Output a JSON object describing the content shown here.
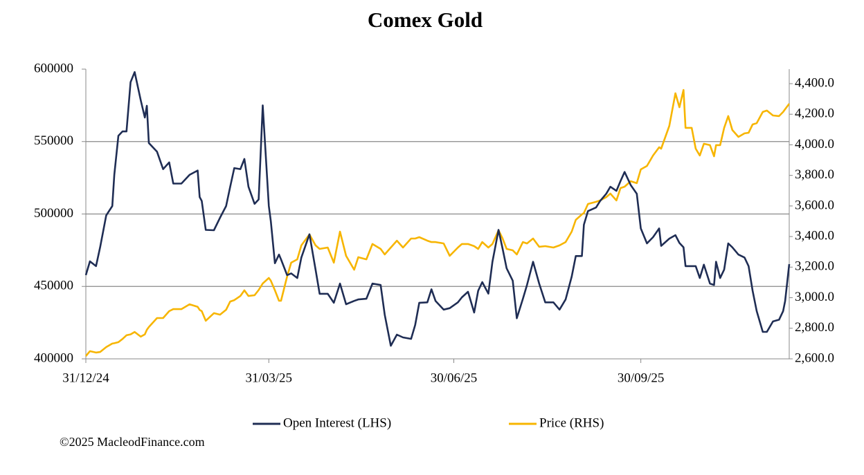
{
  "chart_data": {
    "type": "line",
    "title": "Comex Gold",
    "source": "©2025 MacleodFinance.com",
    "legend": "bottom",
    "grid": true,
    "x": [
      "2024-12-31",
      "2025-01-02",
      "2025-01-05",
      "2025-01-07",
      "2025-01-10",
      "2025-01-13",
      "2025-01-14",
      "2025-01-16",
      "2025-01-18",
      "2025-01-20",
      "2025-01-22",
      "2025-01-24",
      "2025-01-27",
      "2025-01-29",
      "2025-01-30",
      "2025-01-31",
      "2025-02-04",
      "2025-02-07",
      "2025-02-10",
      "2025-02-12",
      "2025-02-16",
      "2025-02-20",
      "2025-02-24",
      "2025-02-25",
      "2025-02-26",
      "2025-02-28",
      "2025-03-04",
      "2025-03-07",
      "2025-03-10",
      "2025-03-12",
      "2025-03-14",
      "2025-03-17",
      "2025-03-19",
      "2025-03-21",
      "2025-03-24",
      "2025-03-26",
      "2025-03-28",
      "2025-03-31",
      "2025-04-01",
      "2025-04-03",
      "2025-04-05",
      "2025-04-06",
      "2025-04-09",
      "2025-04-11",
      "2025-04-14",
      "2025-04-16",
      "2025-04-20",
      "2025-04-23",
      "2025-04-25",
      "2025-04-29",
      "2025-05-02",
      "2025-05-05",
      "2025-05-08",
      "2025-05-12",
      "2025-05-14",
      "2025-05-18",
      "2025-05-21",
      "2025-05-25",
      "2025-05-27",
      "2025-05-30",
      "2025-06-02",
      "2025-06-05",
      "2025-06-09",
      "2025-06-11",
      "2025-06-13",
      "2025-06-17",
      "2025-06-19",
      "2025-06-21",
      "2025-06-25",
      "2025-06-28",
      "2025-07-02",
      "2025-07-04",
      "2025-07-07",
      "2025-07-10",
      "2025-07-12",
      "2025-07-14",
      "2025-07-17",
      "2025-07-19",
      "2025-07-22",
      "2025-07-24",
      "2025-07-26",
      "2025-07-29",
      "2025-07-31",
      "2025-08-03",
      "2025-08-05",
      "2025-08-08",
      "2025-08-11",
      "2025-08-14",
      "2025-08-18",
      "2025-08-21",
      "2025-08-24",
      "2025-08-27",
      "2025-08-29",
      "2025-09-01",
      "2025-09-02",
      "2025-09-04",
      "2025-09-08",
      "2025-09-10",
      "2025-09-13",
      "2025-09-15",
      "2025-09-18",
      "2025-09-20",
      "2025-09-22",
      "2025-09-25",
      "2025-09-28",
      "2025-09-30",
      "2025-10-03",
      "2025-10-06",
      "2025-10-09",
      "2025-10-10",
      "2025-10-14",
      "2025-10-17",
      "2025-10-19",
      "2025-10-21",
      "2025-10-22",
      "2025-10-25",
      "2025-10-27",
      "2025-10-29",
      "2025-10-31",
      "2025-11-03",
      "2025-11-05",
      "2025-11-06",
      "2025-11-08",
      "2025-11-10",
      "2025-11-12",
      "2025-11-14",
      "2025-11-17",
      "2025-11-20",
      "2025-11-22",
      "2025-11-24",
      "2025-11-26",
      "2025-11-29",
      "2025-12-01",
      "2025-12-04",
      "2025-12-07",
      "2025-12-09",
      "2025-12-10",
      "2025-12-12"
    ],
    "series": [
      {
        "name": "Open Interest (LHS)",
        "color": "#1f2d54",
        "values": [
          457800,
          467300,
          464000,
          477000,
          499000,
          505500,
          527000,
          554000,
          557000,
          557000,
          591000,
          598000,
          578500,
          566600,
          574700,
          549000,
          543000,
          531000,
          535600,
          521000,
          521000,
          527000,
          530000,
          511700,
          509000,
          489000,
          488800,
          497400,
          505500,
          518800,
          531700,
          531000,
          538000,
          518800,
          507000,
          510000,
          575000,
          505500,
          495000,
          466000,
          472000,
          468700,
          457800,
          459000,
          455800,
          470000,
          486000,
          461600,
          444900,
          444900,
          438700,
          452000,
          437700,
          440000,
          441000,
          441500,
          452000,
          451000,
          430500,
          409000,
          416700,
          414800,
          413800,
          423400,
          438700,
          439000,
          448000,
          440000,
          434000,
          435000,
          439000,
          442500,
          446300,
          432000,
          447000,
          453000,
          445000,
          467000,
          489000,
          476000,
          462500,
          454000,
          428000,
          441500,
          451000,
          467000,
          452000,
          439000,
          439000,
          434000,
          441000,
          456800,
          471000,
          471000,
          492600,
          502000,
          504500,
          509000,
          514000,
          518800,
          516000,
          522700,
          529000,
          520000,
          514000,
          490000,
          479700,
          484000,
          490000,
          478000,
          483000,
          485400,
          480000,
          477000,
          464000,
          464000,
          464000,
          455800,
          465000,
          452000,
          451000,
          467000,
          455800,
          461600,
          479700,
          477000,
          472000,
          470000,
          464000,
          447000,
          433000,
          418600,
          418600,
          425800,
          427000,
          433000,
          440000,
          465400
        ]
      },
      {
        "name": "Price (RHS)",
        "color": "#f7b500",
        "axis": "y2",
        "values": [
          2618,
          2650,
          2641,
          2645,
          2677,
          2700,
          2702,
          2709,
          2730,
          2754,
          2760,
          2776,
          2745,
          2760,
          2790,
          2808,
          2867,
          2867,
          2912,
          2925,
          2925,
          2957,
          2940,
          2920,
          2912,
          2849,
          2899,
          2889,
          2921,
          2975,
          2984,
          3011,
          3048,
          3011,
          3016,
          3050,
          3093,
          3129,
          3111,
          3048,
          2980,
          2980,
          3138,
          3229,
          3251,
          3342,
          3414,
          3342,
          3319,
          3328,
          3229,
          3432,
          3274,
          3183,
          3265,
          3251,
          3351,
          3319,
          3283,
          3328,
          3373,
          3328,
          3387,
          3387,
          3396,
          3373,
          3364,
          3364,
          3355,
          3274,
          3328,
          3351,
          3351,
          3337,
          3319,
          3364,
          3328,
          3351,
          3441,
          3387,
          3319,
          3310,
          3283,
          3364,
          3355,
          3387,
          3333,
          3337,
          3328,
          3342,
          3364,
          3432,
          3509,
          3545,
          3554,
          3613,
          3627,
          3636,
          3658,
          3681,
          3636,
          3717,
          3726,
          3762,
          3749,
          3839,
          3862,
          3930,
          3984,
          3975,
          4124,
          4337,
          4246,
          4359,
          4111,
          4111,
          3975,
          3930,
          4007,
          3998,
          3925,
          3998,
          3998,
          4111,
          4188,
          4097,
          4052,
          4075,
          4079,
          4133,
          4142,
          4215,
          4224,
          4192,
          4188,
          4215,
          4233,
          4269
        ]
      }
    ],
    "xlim": [
      "2024-12-31",
      "2025-12-12"
    ],
    "xticks": [
      {
        "value": "2024-12-31",
        "label": "31/12/24"
      },
      {
        "value": "2025-03-31",
        "label": "31/03/25"
      },
      {
        "value": "2025-06-30",
        "label": "30/06/25"
      },
      {
        "value": "2025-09-30",
        "label": "30/09/25"
      }
    ],
    "ylim": [
      400000,
      600000
    ],
    "yticks": [
      400000,
      450000,
      500000,
      550000,
      600000
    ],
    "y2lim": [
      2600,
      4495
    ],
    "y2ticks": [
      {
        "value": 2600,
        "label": "2,600.0"
      },
      {
        "value": 2800,
        "label": "2,800.0"
      },
      {
        "value": 3000,
        "label": "3,000.0"
      },
      {
        "value": 3200,
        "label": "3,200.0"
      },
      {
        "value": 3400,
        "label": "3,400.0"
      },
      {
        "value": 3600,
        "label": "3,600.0"
      },
      {
        "value": 3800,
        "label": "3,800.0"
      },
      {
        "value": 4000,
        "label": "4,000.0"
      },
      {
        "value": 4200,
        "label": "4,200.0"
      },
      {
        "value": 4400,
        "label": "4,400.0"
      }
    ]
  }
}
